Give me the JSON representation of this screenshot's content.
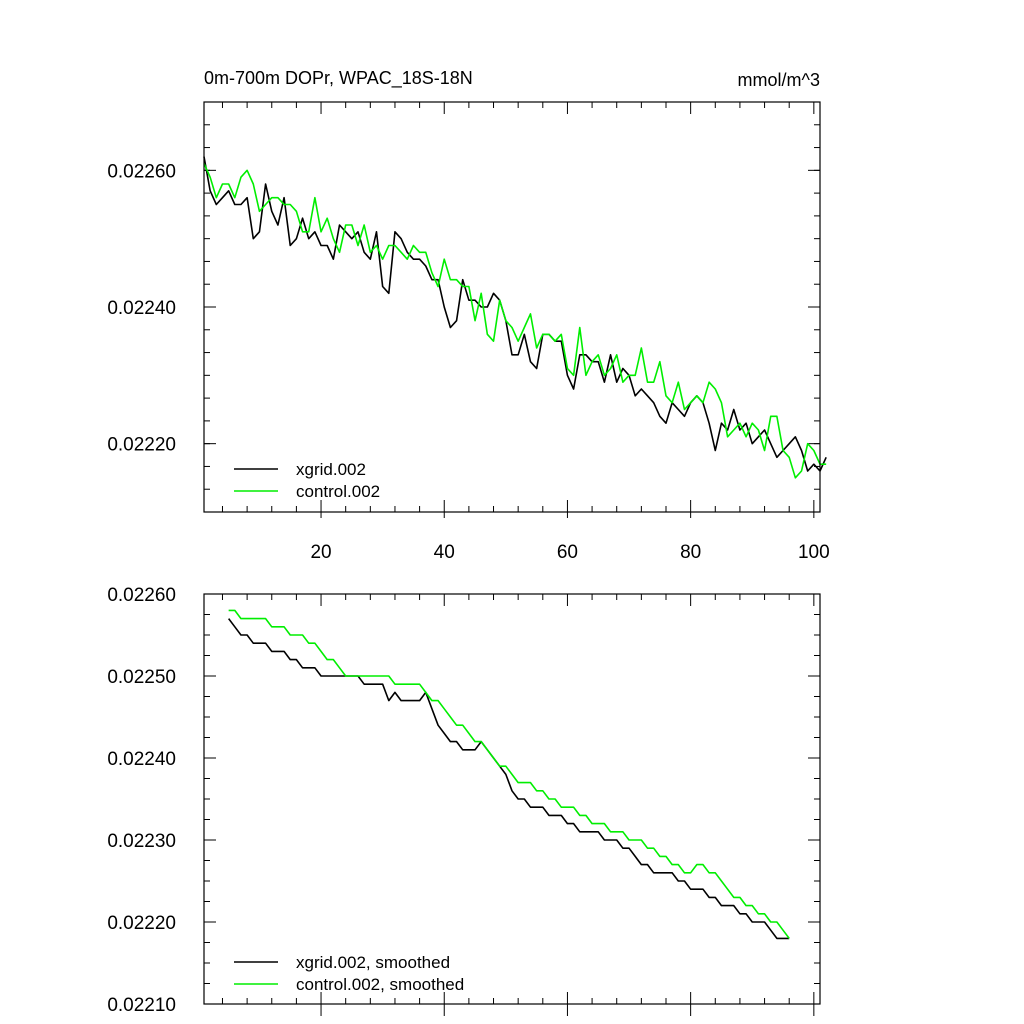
{
  "chart_data": [
    {
      "type": "line",
      "title": "0m-700m DOPr, WPAC_18S-18N",
      "units": "mmol/m^3",
      "xlabel": "",
      "ylabel": "",
      "xlim": [
        1,
        101
      ],
      "ylim": [
        0.0221,
        0.0227
      ],
      "xticks": [
        20,
        40,
        60,
        80,
        100
      ],
      "xtick_labels": [
        "20",
        "40",
        "60",
        "80",
        "100"
      ],
      "yticks": [
        0.0222,
        0.0224,
        0.0226
      ],
      "ytick_labels": [
        "0.02220",
        "0.02240",
        "0.02260"
      ],
      "legend_position": "bottom-left",
      "series": [
        {
          "name": "xgrid.002",
          "color": "#000000",
          "x_start": 1,
          "values": [
            0.02262,
            0.02257,
            0.02255,
            0.02256,
            0.02257,
            0.02255,
            0.02255,
            0.02256,
            0.0225,
            0.02251,
            0.02258,
            0.02254,
            0.02252,
            0.02256,
            0.02249,
            0.0225,
            0.02253,
            0.0225,
            0.02251,
            0.02249,
            0.02249,
            0.02247,
            0.02252,
            0.02251,
            0.0225,
            0.02251,
            0.02248,
            0.02247,
            0.02251,
            0.02243,
            0.02242,
            0.02251,
            0.0225,
            0.02248,
            0.02247,
            0.02247,
            0.02246,
            0.02244,
            0.02244,
            0.0224,
            0.02237,
            0.02238,
            0.02244,
            0.02241,
            0.02241,
            0.0224,
            0.0224,
            0.02242,
            0.02241,
            0.02238,
            0.02233,
            0.02233,
            0.02236,
            0.02232,
            0.02231,
            0.02236,
            0.02236,
            0.02235,
            0.02235,
            0.0223,
            0.02228,
            0.02233,
            0.02233,
            0.02232,
            0.02232,
            0.02229,
            0.02233,
            0.02229,
            0.02231,
            0.0223,
            0.02227,
            0.02228,
            0.02227,
            0.02226,
            0.02224,
            0.02223,
            0.02226,
            0.02225,
            0.02224,
            0.02226,
            0.02227,
            0.02226,
            0.02223,
            0.02219,
            0.02223,
            0.02222,
            0.02225,
            0.02222,
            0.02223,
            0.0222,
            0.02221,
            0.02222,
            0.0222,
            0.02218,
            0.02219,
            0.0222,
            0.02221,
            0.02219,
            0.02216,
            0.02217,
            0.02216,
            0.02218
          ]
        },
        {
          "name": "control.002",
          "color": "#00ee00",
          "x_start": 1,
          "values": [
            0.02261,
            0.02259,
            0.02256,
            0.02258,
            0.02258,
            0.02256,
            0.02259,
            0.0226,
            0.02258,
            0.02254,
            0.02255,
            0.02256,
            0.02256,
            0.02255,
            0.02255,
            0.02254,
            0.02251,
            0.02251,
            0.02256,
            0.02251,
            0.02253,
            0.0225,
            0.02248,
            0.02252,
            0.02252,
            0.02249,
            0.02252,
            0.02248,
            0.02249,
            0.02247,
            0.02249,
            0.02249,
            0.02248,
            0.02247,
            0.02249,
            0.02248,
            0.02248,
            0.02245,
            0.02243,
            0.02247,
            0.02244,
            0.02244,
            0.02243,
            0.02243,
            0.02238,
            0.02242,
            0.02236,
            0.02235,
            0.02241,
            0.02238,
            0.02237,
            0.02235,
            0.02237,
            0.02239,
            0.02234,
            0.02236,
            0.02236,
            0.02235,
            0.02236,
            0.02231,
            0.0223,
            0.02237,
            0.0223,
            0.02232,
            0.02233,
            0.0223,
            0.02231,
            0.02233,
            0.02229,
            0.0223,
            0.0223,
            0.02234,
            0.02229,
            0.02229,
            0.02232,
            0.02227,
            0.02226,
            0.02229,
            0.02225,
            0.02226,
            0.02227,
            0.02226,
            0.02229,
            0.02228,
            0.02226,
            0.02221,
            0.02222,
            0.02223,
            0.02221,
            0.02223,
            0.02222,
            0.02219,
            0.02224,
            0.02224,
            0.02219,
            0.02218,
            0.02215,
            0.02216,
            0.0222,
            0.02219,
            0.02217,
            0.02217
          ]
        }
      ]
    },
    {
      "type": "line",
      "title": "",
      "xlabel": "",
      "ylabel": "",
      "xlim": [
        1,
        101
      ],
      "ylim": [
        0.0221,
        0.0226
      ],
      "xticks": [
        20,
        40,
        60,
        80,
        100
      ],
      "xtick_labels": [],
      "yticks": [
        0.0221,
        0.0222,
        0.0223,
        0.0224,
        0.0225,
        0.0226
      ],
      "ytick_labels": [
        "0.02210",
        "0.02220",
        "0.02230",
        "0.02240",
        "0.02250",
        "0.02260"
      ],
      "legend_position": "bottom-left",
      "series": [
        {
          "name": "xgrid.002, smoothed",
          "color": "#000000",
          "x_start": 5,
          "values": [
            0.02257,
            0.02256,
            0.02255,
            0.02255,
            0.02254,
            0.02254,
            0.02254,
            0.02253,
            0.02253,
            0.02253,
            0.02252,
            0.02252,
            0.02251,
            0.02251,
            0.02251,
            0.0225,
            0.0225,
            0.0225,
            0.0225,
            0.0225,
            0.0225,
            0.0225,
            0.02249,
            0.02249,
            0.02249,
            0.02249,
            0.02247,
            0.02248,
            0.02247,
            0.02247,
            0.02247,
            0.02247,
            0.02248,
            0.02246,
            0.02244,
            0.02243,
            0.02242,
            0.02242,
            0.02241,
            0.02241,
            0.02241,
            0.02242,
            0.02241,
            0.0224,
            0.02239,
            0.02238,
            0.02236,
            0.02235,
            0.02235,
            0.02234,
            0.02234,
            0.02234,
            0.02233,
            0.02233,
            0.02233,
            0.02232,
            0.02232,
            0.02231,
            0.02231,
            0.02231,
            0.02231,
            0.0223,
            0.0223,
            0.0223,
            0.02229,
            0.02229,
            0.02228,
            0.02227,
            0.02227,
            0.02226,
            0.02226,
            0.02226,
            0.02226,
            0.02225,
            0.02225,
            0.02224,
            0.02224,
            0.02224,
            0.02223,
            0.02223,
            0.02222,
            0.02222,
            0.02222,
            0.02221,
            0.02221,
            0.0222,
            0.0222,
            0.0222,
            0.02219,
            0.02218,
            0.02218,
            0.02218
          ]
        },
        {
          "name": "control.002, smoothed",
          "color": "#00ee00",
          "x_start": 5,
          "values": [
            0.02258,
            0.02258,
            0.02257,
            0.02257,
            0.02257,
            0.02257,
            0.02257,
            0.02256,
            0.02256,
            0.02256,
            0.02255,
            0.02255,
            0.02255,
            0.02254,
            0.02254,
            0.02253,
            0.02252,
            0.02252,
            0.02251,
            0.0225,
            0.0225,
            0.0225,
            0.0225,
            0.0225,
            0.0225,
            0.0225,
            0.0225,
            0.02249,
            0.02249,
            0.02249,
            0.02249,
            0.02249,
            0.02248,
            0.02247,
            0.02247,
            0.02246,
            0.02245,
            0.02244,
            0.02244,
            0.02243,
            0.02242,
            0.02242,
            0.02241,
            0.0224,
            0.02239,
            0.02239,
            0.02238,
            0.02237,
            0.02237,
            0.02237,
            0.02236,
            0.02236,
            0.02235,
            0.02235,
            0.02234,
            0.02234,
            0.02234,
            0.02233,
            0.02233,
            0.02232,
            0.02232,
            0.02232,
            0.02231,
            0.02231,
            0.02231,
            0.0223,
            0.0223,
            0.0223,
            0.02229,
            0.02229,
            0.02228,
            0.02228,
            0.02227,
            0.02227,
            0.02226,
            0.02226,
            0.02227,
            0.02227,
            0.02226,
            0.02226,
            0.02225,
            0.02224,
            0.02223,
            0.02223,
            0.02222,
            0.02222,
            0.02221,
            0.02221,
            0.0222,
            0.0222,
            0.02219,
            0.02218
          ]
        }
      ]
    }
  ]
}
